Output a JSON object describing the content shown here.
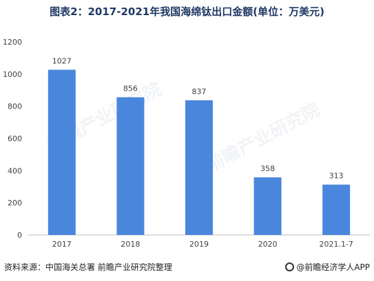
{
  "title": "图表2：2017-2021年我国海绵钛出口金额(单位：万美元)",
  "source": "资料来源：中国海关总署 前瞻产业研究院整理",
  "brand": "@前瞻经济学人APP",
  "watermark": "前瞻产业研究院",
  "colors": {
    "bar": "#4a87dc",
    "axis": "#bfbfbf",
    "text": "#404040",
    "title": "#1f3864"
  },
  "chart_data": {
    "type": "bar",
    "categories": [
      "2017",
      "2018",
      "2019",
      "2020",
      "2021.1-7"
    ],
    "values": [
      1027,
      856,
      837,
      358,
      313
    ],
    "data_labels": [
      "1027",
      "856",
      "837",
      "358",
      "313"
    ],
    "ylim": [
      0,
      1200
    ],
    "yticks": [
      0,
      200,
      400,
      600,
      800,
      1000,
      1200
    ],
    "ytick_labels": [
      "0",
      "200",
      "400",
      "600",
      "800",
      "1000",
      "1200"
    ],
    "grid": false,
    "legend": "none"
  }
}
